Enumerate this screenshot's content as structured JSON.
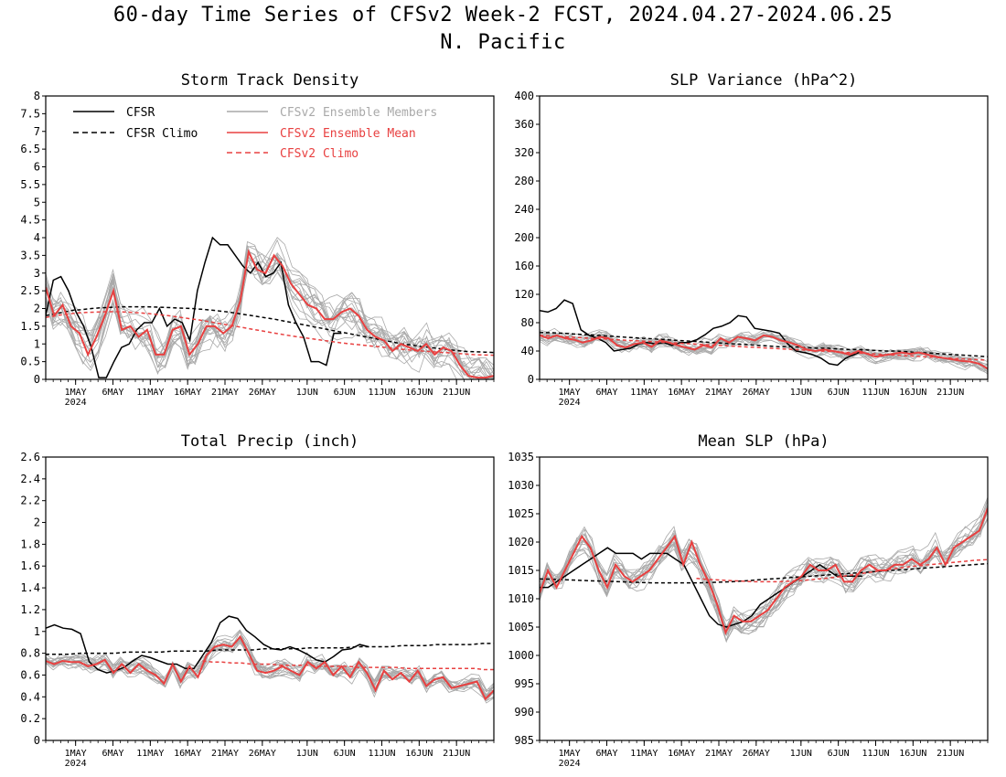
{
  "title_line1": "60-day Time Series of CFSv2 Week-2 FCST, 2024.04.27-2024.06.25",
  "title_line2": "N. Pacific",
  "colors": {
    "cfsr": "#000000",
    "ens_member": "#a9a9a9",
    "ens_mean": "#e84040",
    "cfsv2_climo": "#e84040"
  },
  "legend": [
    {
      "label": "CFSR",
      "color": "#000000",
      "dash": false
    },
    {
      "label": "CFSR Climo",
      "color": "#000000",
      "dash": true
    },
    {
      "label": "CFSv2 Ensemble Members",
      "color": "#a9a9a9",
      "dash": false
    },
    {
      "label": "CFSv2 Ensemble Mean",
      "color": "#e84040",
      "dash": false
    },
    {
      "label": "CFSv2 Climo",
      "color": "#e84040",
      "dash": true
    }
  ],
  "x_ticks": [
    "1MAY",
    "6MAY",
    "11MAY",
    "16MAY",
    "21MAY",
    "26MAY",
    "1JUN",
    "6JUN",
    "11JUN",
    "16JUN",
    "21JUN"
  ],
  "x_year_label": "2024",
  "chart_data": [
    {
      "type": "line",
      "title": "Storm Track Density",
      "ylim": [
        0,
        8
      ],
      "yticks": [
        "0",
        "0.5",
        "1",
        "1.5",
        "2",
        "2.5",
        "3",
        "3.5",
        "4",
        "4.5",
        "5",
        "5.5",
        "6",
        "6.5",
        "7",
        "7.5",
        "8"
      ],
      "series": [
        {
          "name": "CFSR",
          "values": [
            1.8,
            2.8,
            2.9,
            2.5,
            1.9,
            1.5,
            0.9,
            0.05,
            0.05,
            0.5,
            0.9,
            1.0,
            1.4,
            1.6,
            1.6,
            2.0,
            1.5,
            1.7,
            1.6,
            1.1,
            2.5,
            3.3,
            4.0,
            3.8,
            3.8,
            3.5,
            3.2,
            3.0,
            3.3,
            2.9,
            3.0,
            3.3,
            2.1,
            1.6,
            1.2,
            0.5,
            0.5,
            0.4,
            1.3,
            1.3
          ]
        },
        {
          "name": "CFSR Climo",
          "values": [
            1.8,
            1.85,
            1.9,
            1.95,
            1.97,
            2.0,
            2.02,
            2.03,
            2.04,
            2.05,
            2.05,
            2.05,
            2.04,
            2.03,
            2.02,
            2.01,
            2.0,
            1.98,
            1.96,
            1.93,
            1.9,
            1.86,
            1.82,
            1.78,
            1.74,
            1.7,
            1.65,
            1.6,
            1.55,
            1.5,
            1.45,
            1.4,
            1.35,
            1.3,
            1.25,
            1.2,
            1.15,
            1.1,
            1.05,
            1.0,
            0.97,
            0.93,
            0.9,
            0.87,
            0.84,
            0.81,
            0.79,
            0.78,
            0.77,
            0.76
          ]
        },
        {
          "name": "CFSv2 Ensemble Mean",
          "values": [
            2.6,
            1.8,
            2.1,
            1.5,
            1.3,
            0.7,
            1.2,
            1.8,
            2.5,
            1.4,
            1.5,
            1.2,
            1.4,
            0.7,
            0.7,
            1.4,
            1.5,
            0.7,
            1.0,
            1.5,
            1.5,
            1.3,
            1.5,
            2.2,
            3.6,
            3.1,
            3.0,
            3.5,
            3.2,
            2.7,
            2.4,
            2.1,
            2.0,
            1.7,
            1.7,
            1.9,
            2.0,
            1.8,
            1.4,
            1.2,
            1.1,
            0.8,
            1.0,
            0.9,
            0.8,
            1.0,
            0.7,
            0.9,
            0.8,
            0.4,
            0.1,
            0.05,
            0.05,
            0.1
          ]
        },
        {
          "name": "CFSv2 Climo",
          "values": [
            1.75,
            1.8,
            1.84,
            1.87,
            1.89,
            1.9,
            1.91,
            1.91,
            1.9,
            1.88,
            1.86,
            1.83,
            1.8,
            1.76,
            1.72,
            1.68,
            1.63,
            1.58,
            1.53,
            1.48,
            1.43,
            1.38,
            1.33,
            1.28,
            1.23,
            1.19,
            1.15,
            1.11,
            1.07,
            1.03,
            1.0,
            0.97,
            0.94,
            0.91,
            0.88,
            0.85,
            0.82,
            0.8,
            0.78,
            0.76,
            0.74,
            0.72,
            0.7,
            0.69,
            0.68
          ]
        }
      ]
    },
    {
      "type": "line",
      "title": "SLP Variance (hPa^2)",
      "ylim": [
        0,
        400
      ],
      "yticks": [
        "0",
        "40",
        "80",
        "120",
        "160",
        "200",
        "240",
        "280",
        "320",
        "360",
        "400"
      ],
      "series": [
        {
          "name": "CFSR",
          "values": [
            97,
            95,
            100,
            112,
            107,
            70,
            62,
            58,
            52,
            40,
            42,
            44,
            50,
            52,
            50,
            52,
            48,
            52,
            52,
            56,
            63,
            72,
            75,
            80,
            90,
            88,
            72,
            70,
            68,
            65,
            50,
            40,
            38,
            35,
            30,
            22,
            20,
            30,
            35,
            40
          ]
        },
        {
          "name": "CFSR Climo",
          "values": [
            66,
            66,
            65,
            64,
            63,
            62,
            61,
            60,
            59,
            58,
            57,
            56,
            55,
            54,
            53,
            52,
            51,
            50,
            49,
            48,
            47,
            46,
            46,
            45,
            44,
            44,
            43,
            42,
            42,
            41,
            40,
            40,
            39,
            38,
            37,
            36,
            35,
            34,
            33,
            32
          ]
        },
        {
          "name": "CFSv2 Ensemble Mean",
          "values": [
            62,
            58,
            62,
            58,
            56,
            52,
            55,
            60,
            58,
            48,
            45,
            50,
            52,
            46,
            55,
            52,
            48,
            45,
            42,
            48,
            45,
            58,
            52,
            60,
            58,
            55,
            62,
            60,
            55,
            52,
            48,
            42,
            40,
            42,
            40,
            38,
            35,
            40,
            36,
            32,
            34,
            36,
            38,
            36,
            38,
            35,
            32,
            30,
            28,
            26,
            25,
            22,
            15
          ]
        },
        {
          "name": "CFSv2 Climo",
          "values": [
            62,
            61,
            60,
            59,
            58,
            57,
            56,
            55,
            54,
            53,
            52,
            51,
            50,
            49,
            48,
            47,
            46,
            45,
            44,
            43,
            42,
            41,
            40,
            39,
            38,
            37,
            36,
            35,
            34,
            33,
            32,
            31,
            30,
            29,
            28,
            27
          ]
        }
      ]
    },
    {
      "type": "line",
      "title": "Total Precip (inch)",
      "ylim": [
        0,
        2.6
      ],
      "yticks": [
        "0",
        "0.2",
        "0.4",
        "0.6",
        "0.8",
        "1",
        "1.2",
        "1.4",
        "1.6",
        "1.8",
        "2",
        "2.2",
        "2.4",
        "2.6"
      ],
      "series": [
        {
          "name": "CFSR",
          "values": [
            1.03,
            1.06,
            1.03,
            1.02,
            0.98,
            0.72,
            0.65,
            0.62,
            0.64,
            0.67,
            0.73,
            0.78,
            0.76,
            0.73,
            0.7,
            0.7,
            0.66,
            0.66,
            0.78,
            0.9,
            1.08,
            1.14,
            1.12,
            1.01,
            0.95,
            0.88,
            0.84,
            0.83,
            0.86,
            0.83,
            0.79,
            0.74,
            0.72,
            0.77,
            0.83,
            0.84,
            0.88,
            0.86
          ]
        },
        {
          "name": "CFSR Climo",
          "values": [
            0.79,
            0.79,
            0.79,
            0.8,
            0.8,
            0.8,
            0.8,
            0.81,
            0.81,
            0.81,
            0.81,
            0.82,
            0.82,
            0.82,
            0.82,
            0.83,
            0.83,
            0.83,
            0.83,
            0.84,
            0.84,
            0.84,
            0.84,
            0.85,
            0.85,
            0.85,
            0.85,
            0.86,
            0.86,
            0.86,
            0.86,
            0.87,
            0.87,
            0.87,
            0.88,
            0.88,
            0.88,
            0.88,
            0.89,
            0.89
          ]
        },
        {
          "name": "CFSv2 Ensemble Mean",
          "values": [
            0.73,
            0.7,
            0.73,
            0.72,
            0.72,
            0.68,
            0.7,
            0.74,
            0.62,
            0.7,
            0.62,
            0.7,
            0.64,
            0.6,
            0.52,
            0.7,
            0.54,
            0.68,
            0.58,
            0.78,
            0.86,
            0.88,
            0.86,
            0.95,
            0.8,
            0.64,
            0.62,
            0.64,
            0.68,
            0.64,
            0.6,
            0.72,
            0.66,
            0.72,
            0.6,
            0.68,
            0.58,
            0.72,
            0.62,
            0.46,
            0.64,
            0.56,
            0.62,
            0.54,
            0.64,
            0.5,
            0.56,
            0.58,
            0.48,
            0.5,
            0.52,
            0.54,
            0.38,
            0.46
          ]
        },
        {
          "name": "CFSv2 Climo",
          "values": [
            0.73,
            0.72,
            0.72,
            0.71,
            0.71,
            0.7,
            0.7,
            0.7,
            0.69,
            0.69,
            0.69,
            0.69,
            0.68,
            0.68,
            0.68,
            0.68,
            0.67,
            0.67,
            0.67,
            0.67,
            0.67,
            0.66,
            0.66,
            0.66,
            0.66,
            0.66,
            0.66,
            0.66,
            0.66,
            0.65,
            0.65
          ]
        }
      ]
    },
    {
      "type": "line",
      "title": "Mean SLP (hPa)",
      "ylim": [
        985,
        1035
      ],
      "yticks": [
        "985",
        "990",
        "995",
        "1000",
        "1005",
        "1010",
        "1015",
        "1020",
        "1025",
        "1030",
        "1035"
      ],
      "series": [
        {
          "name": "CFSR",
          "values": [
            1012,
            1012,
            1013,
            1014,
            1015,
            1016,
            1017,
            1018,
            1019,
            1018,
            1018,
            1018,
            1017,
            1018,
            1018,
            1018,
            1017,
            1016,
            1013,
            1010,
            1007,
            1005.5,
            1005,
            1005.5,
            1006,
            1007,
            1009,
            1010,
            1011,
            1012,
            1013,
            1014,
            1015,
            1016,
            1015,
            1014,
            1014,
            1014,
            1014
          ]
        },
        {
          "name": "CFSR Climo",
          "values": [
            1013.5,
            1013.4,
            1013.3,
            1013.2,
            1013.1,
            1013.0,
            1012.9,
            1012.8,
            1012.8,
            1012.8,
            1012.8,
            1012.9,
            1013.0,
            1013.2,
            1013.4,
            1013.6,
            1013.8,
            1014.0,
            1014.2,
            1014.4,
            1014.6,
            1014.8,
            1015.0,
            1015.2,
            1015.4,
            1015.6,
            1015.8,
            1016.0,
            1016.2
          ]
        },
        {
          "name": "CFSv2 Ensemble Mean",
          "values": [
            1011,
            1015,
            1012,
            1015,
            1018,
            1021,
            1019,
            1015,
            1012,
            1016,
            1014,
            1013,
            1014,
            1015,
            1017,
            1019,
            1021,
            1016,
            1020,
            1016,
            1013,
            1009,
            1004,
            1007,
            1006,
            1006,
            1007,
            1008,
            1010,
            1012,
            1013,
            1014,
            1016,
            1015,
            1015,
            1016,
            1013,
            1013,
            1015,
            1016,
            1015,
            1015,
            1016,
            1016,
            1017,
            1016,
            1017,
            1019,
            1016,
            1019,
            1020,
            1021,
            1022,
            1026
          ]
        },
        {
          "name": "CFSv2 Climo",
          "values": [
            1013.6,
            1013.4,
            1013.3,
            1013.2,
            1013.1,
            1013.0,
            1013.0,
            1013.0,
            1013.1,
            1013.2,
            1013.4,
            1013.6,
            1013.8,
            1014.1,
            1014.4,
            1014.7,
            1015.0,
            1015.3,
            1015.6,
            1015.8,
            1016.0,
            1016.2,
            1016.4,
            1016.6,
            1016.8,
            1016.9
          ]
        }
      ]
    }
  ]
}
